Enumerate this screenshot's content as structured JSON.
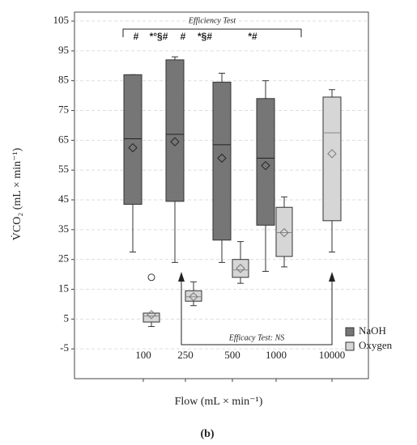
{
  "chart_data": {
    "type": "box",
    "x_label": "Flow (mL × min⁻¹)",
    "y_label": "V̇CO₂ (mL × min⁻¹)",
    "caption": "(b)",
    "categories": [
      "100",
      "250",
      "500",
      "1000",
      "10000"
    ],
    "ylim": [
      -15,
      108
    ],
    "yticks": [
      -5,
      5,
      15,
      25,
      35,
      45,
      55,
      65,
      75,
      85,
      95,
      105
    ],
    "grid": true,
    "legend_position": "lower right",
    "series": [
      {
        "name": "NaOH",
        "color": "#7b7b7b",
        "stats": [
          {
            "min": 27.5,
            "q1": 43.5,
            "median": 65.5,
            "q3": 87,
            "max": 87,
            "mean": 62.5
          },
          {
            "min": 24,
            "q1": 44.5,
            "median": 67,
            "q3": 92,
            "max": 93,
            "mean": 64.5
          },
          {
            "min": 24,
            "q1": 31.5,
            "median": 63.5,
            "q3": 84.5,
            "max": 87.5,
            "mean": 59
          },
          {
            "min": 21,
            "q1": 36.5,
            "median": 59,
            "q3": 79,
            "max": 85,
            "mean": 56.5
          },
          null
        ]
      },
      {
        "name": "Oxygen",
        "color": "#d6d6d6",
        "stats": [
          {
            "min": 2.5,
            "q1": 4,
            "median": 6,
            "q3": 7,
            "max": 7,
            "mean": 6.5,
            "outliers": [
              19
            ]
          },
          {
            "min": 9.5,
            "q1": 11,
            "median": 12.5,
            "q3": 14.5,
            "max": 17.5,
            "mean": 12.5
          },
          {
            "min": 17,
            "q1": 19,
            "median": 21.5,
            "q3": 25,
            "max": 31,
            "mean": 22
          },
          {
            "min": 22.5,
            "q1": 26,
            "median": 34,
            "q3": 42.5,
            "max": 46,
            "mean": 34
          },
          {
            "min": 27.5,
            "q1": 38,
            "median": 67.5,
            "q3": 79.5,
            "max": 82,
            "mean": 60.5
          }
        ]
      }
    ],
    "annotations": {
      "efficiency_title": "Efficiency Test",
      "efficiency_marks": [
        "#",
        "*°§#",
        "#",
        "*§#",
        "*#"
      ],
      "efficacy_title": "Efficacy Test: NS"
    }
  }
}
